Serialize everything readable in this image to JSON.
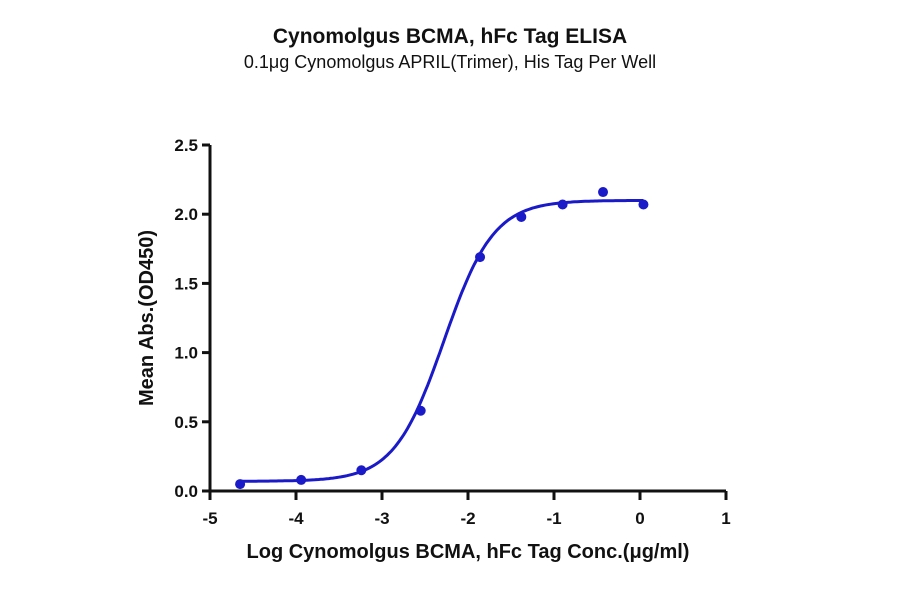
{
  "chart_data": {
    "type": "scatter",
    "title": "Cynomolgus BCMA, hFc Tag ELISA",
    "subtitle": "0.1μg Cynomolgus APRIL(Trimer), His Tag Per Well",
    "xlabel": "Log Cynomolgus BCMA, hFc Tag Conc.(μg/ml)",
    "ylabel": "Mean Abs.(OD450)",
    "xlim": [
      -5,
      1
    ],
    "ylim": [
      0,
      2.5
    ],
    "xticks": [
      "-5",
      "-4",
      "-3",
      "-2",
      "-1",
      "0",
      "1"
    ],
    "yticks": [
      "0.0",
      "0.5",
      "1.0",
      "1.5",
      "2.0",
      "2.5"
    ],
    "grid": false,
    "legend": "none",
    "series": [
      {
        "name": "Cynomolgus BCMA, hFc Tag",
        "color": "#1a1ac8",
        "fit": "4PL sigmoidal",
        "x": [
          -4.65,
          -3.94,
          -3.24,
          -2.55,
          -1.86,
          -1.38,
          -0.9,
          -0.43,
          0.04
        ],
        "y": [
          0.05,
          0.08,
          0.15,
          0.58,
          1.69,
          1.98,
          2.07,
          2.16,
          2.07
        ]
      }
    ],
    "fit_params": {
      "bottom": 0.07,
      "top": 2.1,
      "logEC50": -2.28,
      "hill": 1.5
    }
  }
}
